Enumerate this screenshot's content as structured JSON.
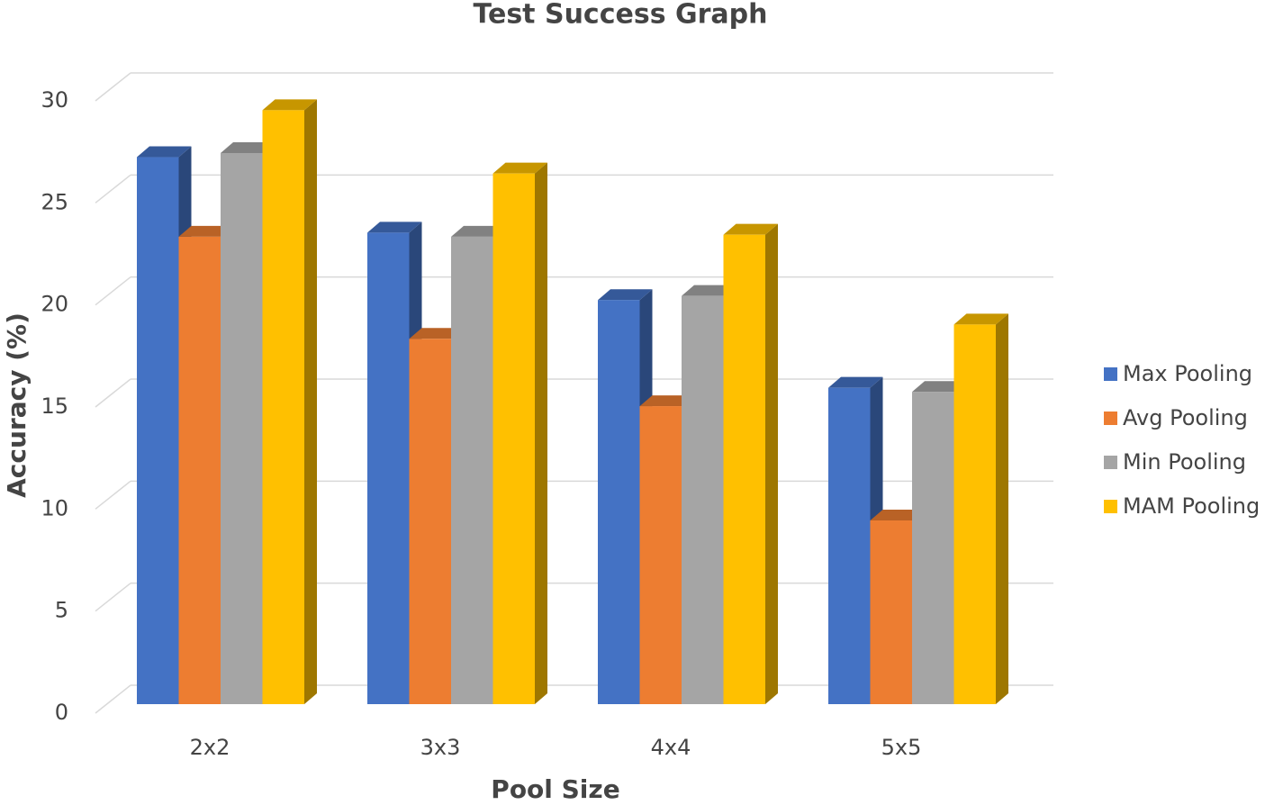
{
  "chart_data": {
    "type": "bar3d",
    "title": "Test Success Graph",
    "x_label": "Pool Size",
    "y_label": "Accuracy (%)",
    "categories": [
      "2x2",
      "3x3",
      "4x4",
      "5x5"
    ],
    "series": [
      {
        "name": "Max Pooling",
        "color": "#4472c4",
        "values": [
          26.8,
          23.1,
          19.8,
          15.5
        ]
      },
      {
        "name": "Avg Pooling",
        "color": "#ed7d31",
        "values": [
          22.9,
          17.9,
          14.6,
          9.0
        ]
      },
      {
        "name": "Min Pooling",
        "color": "#a5a5a5",
        "values": [
          27.0,
          22.9,
          20.0,
          15.3
        ]
      },
      {
        "name": "MAM Pooling",
        "color": "#ffc000",
        "values": [
          29.1,
          26.0,
          23.0,
          18.6
        ]
      }
    ],
    "ylim": [
      0,
      30
    ],
    "yticks": [
      0,
      5,
      10,
      15,
      20,
      25,
      30
    ],
    "grid": true,
    "legend": "right"
  }
}
